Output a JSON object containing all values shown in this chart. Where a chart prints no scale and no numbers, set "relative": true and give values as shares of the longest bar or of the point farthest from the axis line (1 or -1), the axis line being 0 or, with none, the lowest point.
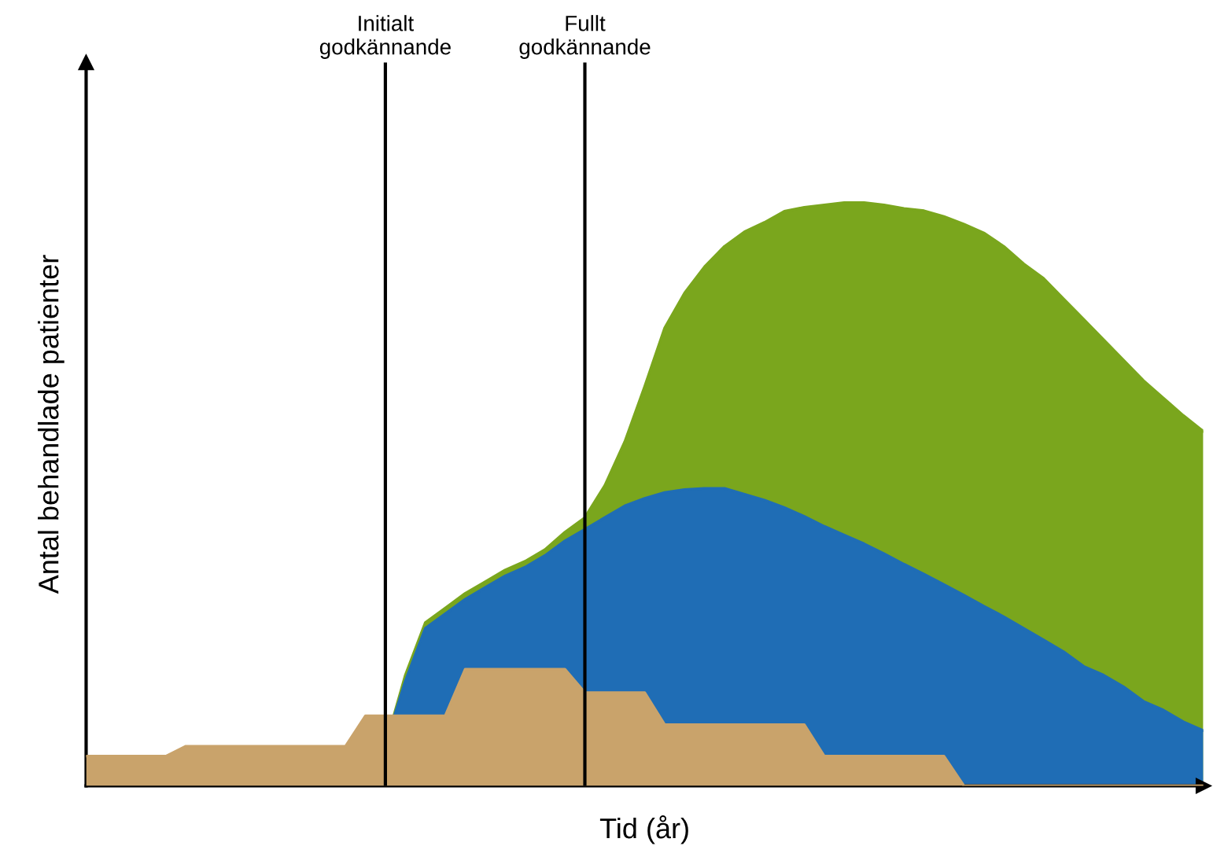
{
  "chart_data": {
    "type": "area",
    "relative": true,
    "xlabel": "Tid (år)",
    "ylabel": "Antal behandlade patienter",
    "categories": [
      null,
      null,
      null,
      null,
      null,
      null,
      null,
      null,
      null,
      null,
      null,
      null,
      null,
      null,
      null,
      null,
      null,
      null,
      null,
      null,
      null,
      null,
      null,
      null,
      null,
      null,
      null,
      null,
      null,
      null,
      null,
      null,
      null,
      null,
      null,
      null,
      null,
      null,
      null,
      null,
      null,
      null,
      null,
      null,
      null,
      null,
      null,
      null,
      null,
      null,
      null,
      null,
      null,
      null,
      null,
      null,
      null
    ],
    "series": [
      {
        "color": "#7aa61d",
        "values": [
          null,
          null,
          null,
          null,
          null,
          null,
          null,
          null,
          null,
          null,
          null,
          null,
          null,
          null,
          null,
          0.07,
          0.19,
          0.28,
          0.305,
          0.33,
          0.35,
          0.37,
          0.385,
          0.405,
          0.435,
          0.46,
          0.515,
          0.59,
          0.685,
          0.785,
          0.845,
          0.89,
          0.925,
          0.95,
          0.966,
          0.985,
          0.992,
          0.996,
          1,
          1,
          0.996,
          0.99,
          0.986,
          0.976,
          0.963,
          0.948,
          0.925,
          0.895,
          0.87,
          0.835,
          0.8,
          0.765,
          0.73,
          0.695,
          0.665,
          0.635,
          0.608
        ]
      },
      {
        "color": "#1f6db5",
        "values": [
          null,
          null,
          null,
          null,
          null,
          null,
          null,
          null,
          null,
          null,
          null,
          null,
          null,
          null,
          null,
          0.07,
          0.18,
          0.27,
          0.295,
          0.32,
          0.34,
          0.36,
          0.375,
          0.395,
          0.42,
          0.44,
          0.46,
          0.48,
          0.493,
          0.503,
          0.508,
          0.51,
          0.51,
          0.5,
          0.49,
          0.477,
          0.462,
          0.445,
          0.43,
          0.415,
          0.398,
          0.38,
          0.363,
          0.345,
          0.327,
          0.308,
          0.29,
          0.27,
          0.25,
          0.23,
          0.205,
          0.19,
          0.17,
          0.145,
          0.13,
          0.11,
          0.095
        ]
      },
      {
        "color": "#c9a36b",
        "values": [
          0.051,
          0.051,
          0.051,
          0.051,
          0.051,
          0.068,
          0.068,
          0.068,
          0.068,
          0.068,
          0.068,
          0.068,
          0.068,
          0.068,
          0.12,
          0.12,
          0.12,
          0.12,
          0.12,
          0.2,
          0.2,
          0.2,
          0.2,
          0.2,
          0.2,
          0.16,
          0.16,
          0.16,
          0.16,
          0.105,
          0.105,
          0.105,
          0.105,
          0.105,
          0.105,
          0.105,
          0.105,
          0.051,
          0.051,
          0.051,
          0.051,
          0.051,
          0.051,
          0.051,
          0,
          0,
          0,
          0,
          0,
          0,
          0,
          0,
          0,
          0,
          0,
          0,
          0
        ]
      }
    ],
    "annotations": [
      "Initialt\ngodkännande",
      "Fullt\ngodkännande"
    ]
  }
}
